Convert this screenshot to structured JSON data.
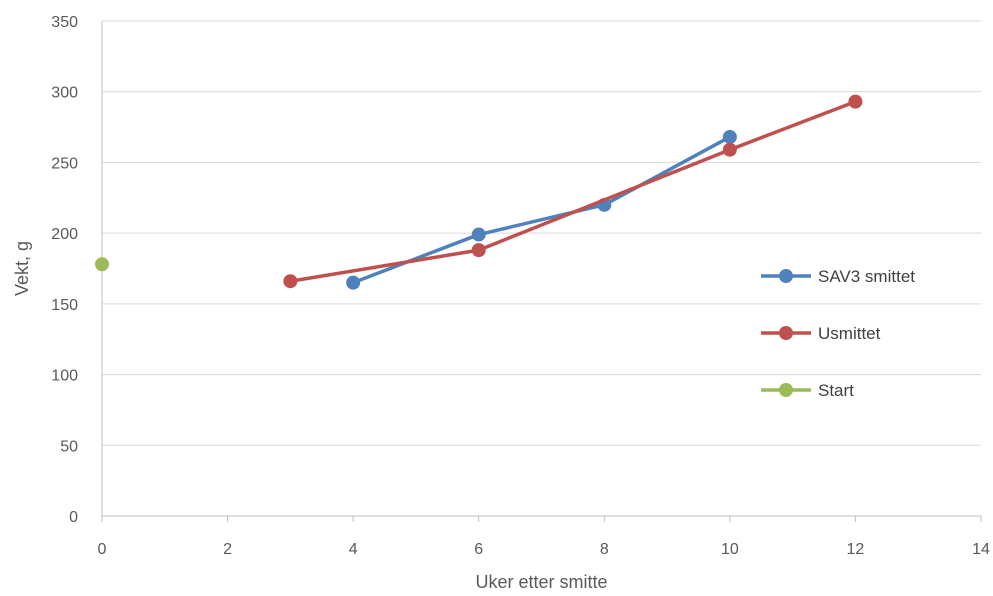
{
  "chart_data": {
    "type": "scatter",
    "xlabel": "Uker etter smitte",
    "ylabel": "Vekt, g",
    "xlim": [
      0,
      14
    ],
    "ylim": [
      0,
      350
    ],
    "xticks": [
      0,
      2,
      4,
      6,
      8,
      10,
      12,
      14
    ],
    "yticks": [
      0,
      50,
      100,
      150,
      200,
      250,
      300,
      350
    ],
    "grid": "horizontal",
    "legend_position": "right",
    "series": [
      {
        "name": "SAV3 smittet",
        "color": "#4f81bd",
        "lines": true,
        "points": [
          [
            4,
            165
          ],
          [
            6,
            199
          ],
          [
            8,
            220
          ],
          [
            10,
            268
          ]
        ]
      },
      {
        "name": "Usmittet",
        "color": "#c0504d",
        "lines": true,
        "points": [
          [
            3,
            166
          ],
          [
            6,
            188
          ],
          [
            10,
            259
          ],
          [
            12,
            293
          ]
        ]
      },
      {
        "name": "Start",
        "color": "#9bbb59",
        "lines": true,
        "points": [
          [
            0,
            178
          ]
        ]
      }
    ]
  }
}
